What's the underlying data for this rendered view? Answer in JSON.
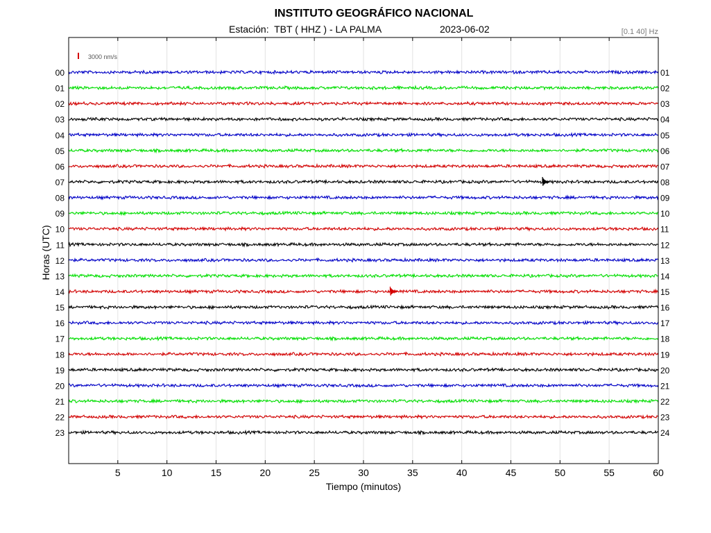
{
  "header": {
    "title": "INSTITUTO GEOGRÁFICO NACIONAL",
    "station": "Estación:  TBT ( HHZ ) - LA PALMA",
    "date": "2023-06-02",
    "filter": "[0.1 40] Hz"
  },
  "scale_bar": {
    "label": "3000 nm/s",
    "color": "#d40000"
  },
  "chart_data": {
    "type": "line",
    "xlabel": "Tiempo (minutos)",
    "ylabel": "Horas (UTC)",
    "xlim": [
      0,
      60
    ],
    "xticks": [
      5,
      10,
      15,
      20,
      25,
      30,
      35,
      40,
      45,
      50,
      55,
      60
    ],
    "grid": true,
    "left_labels": [
      "00",
      "01",
      "02",
      "03",
      "04",
      "05",
      "06",
      "07",
      "08",
      "09",
      "10",
      "11",
      "12",
      "13",
      "14",
      "15",
      "16",
      "17",
      "18",
      "19",
      "20",
      "21",
      "22",
      "23"
    ],
    "right_labels": [
      "01",
      "02",
      "03",
      "04",
      "05",
      "06",
      "07",
      "08",
      "09",
      "10",
      "11",
      "12",
      "13",
      "14",
      "15",
      "16",
      "17",
      "18",
      "19",
      "20",
      "21",
      "22",
      "23",
      "24"
    ],
    "trace_colors": [
      "#0000c8",
      "#00e000",
      "#d40000",
      "#000000"
    ],
    "events": [
      {
        "hour": "07",
        "minute": 48.5
      },
      {
        "hour": "14",
        "minute": 33.0
      }
    ]
  }
}
